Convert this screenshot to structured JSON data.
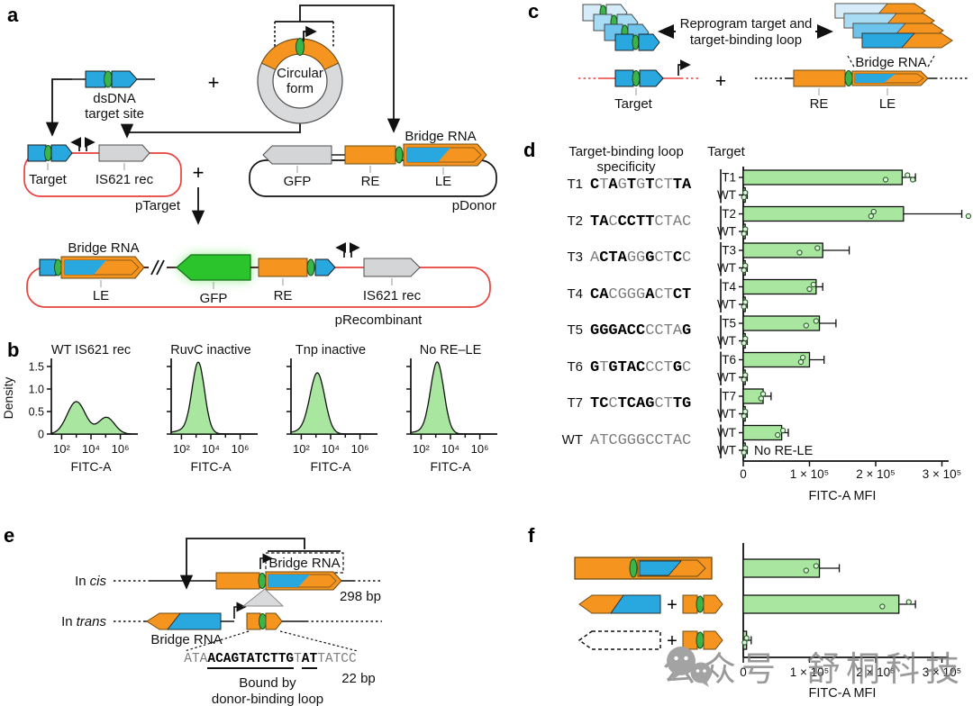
{
  "panels": {
    "a": "a",
    "b": "b",
    "c": "c",
    "d": "d",
    "e": "e",
    "f": "f"
  },
  "colors": {
    "orange": "#f5941f",
    "blue": "#29a8e0",
    "light_blues": [
      "#d6edf9",
      "#a8dcf4",
      "#6cc4ec",
      "#29a8e0"
    ],
    "bar_green": "#a9e7a0",
    "gfp_green": "#2cc42c",
    "oval_green": "#3bb54a",
    "gray_gene": "#d4d5d6",
    "plasmid_red": "#e8413c",
    "ring_gray": "#d9dadb"
  },
  "panel_a": {
    "dsdna_line1": "dsDNA",
    "dsdna_line2": "target site",
    "plus": "+",
    "circular_line1": "Circular",
    "circular_line2": "form",
    "ptarget": {
      "target": "Target",
      "is621": "IS621 rec",
      "name": "pTarget"
    },
    "pdonor": {
      "bridge_rna": "Bridge RNA",
      "gfp": "GFP",
      "re": "RE",
      "le": "LE",
      "name": "pDonor"
    },
    "precombinant": {
      "bridge_rna": "Bridge RNA",
      "le": "LE",
      "gfp": "GFP",
      "re": "RE",
      "is621": "IS621 rec",
      "name": "pRecombinant"
    }
  },
  "panel_c": {
    "caption_line1": "Reprogram target and",
    "caption_line2": "target-binding loop",
    "target": "Target",
    "plus": "+",
    "bridge_rna": "Bridge RNA",
    "re": "RE",
    "le": "LE"
  },
  "panel_d": {
    "header_line1": "Target-binding loop",
    "header_line2": "specificity",
    "header_target": "Target",
    "targets": [
      {
        "name": "T1",
        "runs": [
          {
            "t": "C",
            "b": 1
          },
          {
            "t": "T",
            "b": 0
          },
          {
            "t": "A",
            "b": 1
          },
          {
            "t": "G",
            "b": 0
          },
          {
            "t": "T",
            "b": 1
          },
          {
            "t": "G",
            "b": 0
          },
          {
            "t": "T",
            "b": 1
          },
          {
            "t": "CT",
            "b": 0
          },
          {
            "t": "TA",
            "b": 1
          }
        ]
      },
      {
        "name": "T2",
        "runs": [
          {
            "t": "TA",
            "b": 1
          },
          {
            "t": "C",
            "b": 0
          },
          {
            "t": "CCTT",
            "b": 1
          },
          {
            "t": "CTAC",
            "b": 0
          }
        ]
      },
      {
        "name": "T3",
        "runs": [
          {
            "t": "A",
            "b": 0
          },
          {
            "t": "CTA",
            "b": 1
          },
          {
            "t": "GG",
            "b": 0
          },
          {
            "t": "G",
            "b": 1
          },
          {
            "t": "CT",
            "b": 0
          },
          {
            "t": "C",
            "b": 1
          },
          {
            "t": "C",
            "b": 0
          }
        ]
      },
      {
        "name": "T4",
        "runs": [
          {
            "t": "CA",
            "b": 1
          },
          {
            "t": "CGGG",
            "b": 0
          },
          {
            "t": "A",
            "b": 1
          },
          {
            "t": "CT",
            "b": 0
          },
          {
            "t": "CT",
            "b": 1
          }
        ]
      },
      {
        "name": "T5",
        "runs": [
          {
            "t": "GGGACC",
            "b": 1
          },
          {
            "t": "CCTA",
            "b": 0
          },
          {
            "t": "G",
            "b": 1
          }
        ]
      },
      {
        "name": "T6",
        "runs": [
          {
            "t": "G",
            "b": 1
          },
          {
            "t": "T",
            "b": 0
          },
          {
            "t": "GTAC",
            "b": 1
          },
          {
            "t": "CCT",
            "b": 0
          },
          {
            "t": "G",
            "b": 1
          },
          {
            "t": "C",
            "b": 0
          }
        ]
      },
      {
        "name": "T7",
        "runs": [
          {
            "t": "TC",
            "b": 1
          },
          {
            "t": "C",
            "b": 0
          },
          {
            "t": "TCAG",
            "b": 1
          },
          {
            "t": "CT",
            "b": 0
          },
          {
            "t": "TG",
            "b": 1
          }
        ]
      },
      {
        "name": "WT",
        "runs": [
          {
            "t": "ATCGGGCCTAC",
            "b": 0
          }
        ]
      }
    ]
  },
  "panel_e": {
    "in_prefix": "In",
    "cis": "cis",
    "trans": "trans",
    "bridge_rna_boxed": "Bridge RNA",
    "bp298": "298 bp",
    "bridge_rna": "Bridge RNA",
    "sequence_runs": [
      {
        "t": "ATA",
        "b": 0
      },
      {
        "t": "ACAGTATCTTG",
        "b": 1
      },
      {
        "t": "T",
        "b": 0
      },
      {
        "t": "AT",
        "b": 1
      },
      {
        "t": "TATCC",
        "b": 0
      }
    ],
    "bp22": "22 bp",
    "bound_line1": "Bound by",
    "bound_line2": "donor-binding loop"
  },
  "panel_f": {
    "plus": "+"
  },
  "watermark": {
    "icon": "wechat-logo",
    "text1": "公众号",
    "text2": "舒桐科技"
  },
  "chart_data": [
    {
      "id": "panel_b",
      "type": "density",
      "ylabel": "Density",
      "xlabel": "FITC-A",
      "ylim": [
        0,
        1.6
      ],
      "yticks": [
        {
          "v": 0,
          "label": "0"
        },
        {
          "v": 0.5,
          "label": "0.5"
        },
        {
          "v": 1,
          "label": "1.0"
        },
        {
          "v": 1.5,
          "label": "1.5"
        }
      ],
      "xlog_range": [
        1.3,
        6.7
      ],
      "xticks": [
        {
          "exp": 2,
          "label": "10²"
        },
        {
          "exp": 3,
          "label": ""
        },
        {
          "exp": 4,
          "label": "10⁴"
        },
        {
          "exp": 5,
          "label": ""
        },
        {
          "exp": 6,
          "label": "10⁶"
        }
      ],
      "fill": "#a9e7a0",
      "stroke": "#111111",
      "subplots": [
        {
          "title": "WT IS621 rec",
          "peaks": [
            {
              "center": 3.0,
              "height": 0.72,
              "width": 0.62
            },
            {
              "center": 5.05,
              "height": 0.37,
              "width": 0.55
            }
          ]
        },
        {
          "title": "RuvC inactive",
          "peaks": [
            {
              "center": 3.15,
              "height": 1.52,
              "width": 0.42
            },
            {
              "center": 2.5,
              "height": 0.1,
              "width": 0.9
            }
          ]
        },
        {
          "title": "Tnp inactive",
          "peaks": [
            {
              "center": 3.1,
              "height": 1.3,
              "width": 0.5
            },
            {
              "center": 2.4,
              "height": 0.08,
              "width": 0.9
            }
          ]
        },
        {
          "title": "No RE–LE",
          "peaks": [
            {
              "center": 3.1,
              "height": 1.55,
              "width": 0.45
            },
            {
              "center": 2.4,
              "height": 0.07,
              "width": 0.9
            }
          ]
        }
      ]
    },
    {
      "id": "panel_d_chart",
      "type": "bar",
      "orientation": "horizontal",
      "xlabel": "FITC-A MFI",
      "value_unit": "1e5",
      "xlim": [
        0,
        3.2
      ],
      "xticks": [
        {
          "v": 0,
          "label": "0"
        },
        {
          "v": 1,
          "label": "1 × 10⁵"
        },
        {
          "v": 2,
          "label": "2 × 10⁵"
        },
        {
          "v": 3,
          "label": "3 × 10⁵"
        }
      ],
      "fill": "#a9e7a0",
      "stroke": "#111111",
      "bars": [
        {
          "label": "T1",
          "value": 2.4,
          "hi": 2.6,
          "dots": [
            2.15,
            2.48,
            2.56
          ]
        },
        {
          "label": "WT",
          "value": 0.03,
          "hi": 0.06,
          "dots": [
            0.01,
            0.03
          ]
        },
        {
          "label": "T2",
          "value": 2.42,
          "hi": 3.3,
          "dots": [
            1.93,
            1.97,
            3.4
          ]
        },
        {
          "label": "WT",
          "value": 0.03,
          "hi": 0.06,
          "dots": [
            0.01,
            0.03
          ]
        },
        {
          "label": "T3",
          "value": 1.2,
          "hi": 1.6,
          "dots": [
            0.85,
            1.12
          ]
        },
        {
          "label": "WT",
          "value": 0.03,
          "hi": 0.06,
          "dots": [
            0.01,
            0.03
          ]
        },
        {
          "label": "T4",
          "value": 1.1,
          "hi": 1.2,
          "dots": [
            1.0,
            1.06
          ]
        },
        {
          "label": "WT",
          "value": 0.03,
          "hi": 0.06,
          "dots": [
            0.01,
            0.03
          ]
        },
        {
          "label": "T5",
          "value": 1.15,
          "hi": 1.4,
          "dots": [
            0.95,
            1.1
          ]
        },
        {
          "label": "WT",
          "value": 0.03,
          "hi": 0.06,
          "dots": [
            0.01,
            0.03
          ]
        },
        {
          "label": "T6",
          "value": 1.0,
          "hi": 1.22,
          "dots": [
            0.87,
            0.9
          ]
        },
        {
          "label": "WT",
          "value": 0.03,
          "hi": 0.06,
          "dots": [
            0.01,
            0.03
          ]
        },
        {
          "label": "T7",
          "value": 0.3,
          "hi": 0.42,
          "dots": [
            0.27,
            0.3
          ]
        },
        {
          "label": "WT",
          "value": 0.03,
          "hi": 0.06,
          "dots": [
            0.01,
            0.03
          ]
        },
        {
          "label": "WT",
          "value": 0.58,
          "hi": 0.68,
          "dots": [
            0.52,
            0.6
          ]
        },
        {
          "label": "WT",
          "value": 0.03,
          "hi": 0.06,
          "dots": [
            0.01,
            0.03
          ],
          "note": "No RE-LE"
        }
      ]
    },
    {
      "id": "panel_f_chart",
      "type": "bar",
      "orientation": "horizontal",
      "xlabel": "FITC-A MFI",
      "value_unit": "1e5",
      "xlim": [
        0,
        3.2
      ],
      "xticks": [
        {
          "v": 0,
          "label": "0"
        },
        {
          "v": 1,
          "label": "1 × 10⁵"
        },
        {
          "v": 2,
          "label": "2 × 10⁵"
        },
        {
          "v": 3,
          "label": "3 × 10⁵"
        }
      ],
      "fill": "#a9e7a0",
      "stroke": "#111111",
      "bars": [
        {
          "label": "",
          "value": 1.15,
          "hi": 1.45,
          "dots": [
            0.95,
            1.1
          ]
        },
        {
          "label": "",
          "value": 2.35,
          "hi": 2.6,
          "dots": [
            2.1,
            2.5
          ]
        },
        {
          "label": "",
          "value": 0.05,
          "hi": 0.12,
          "dots": [
            0.02,
            0.05
          ]
        }
      ]
    }
  ]
}
